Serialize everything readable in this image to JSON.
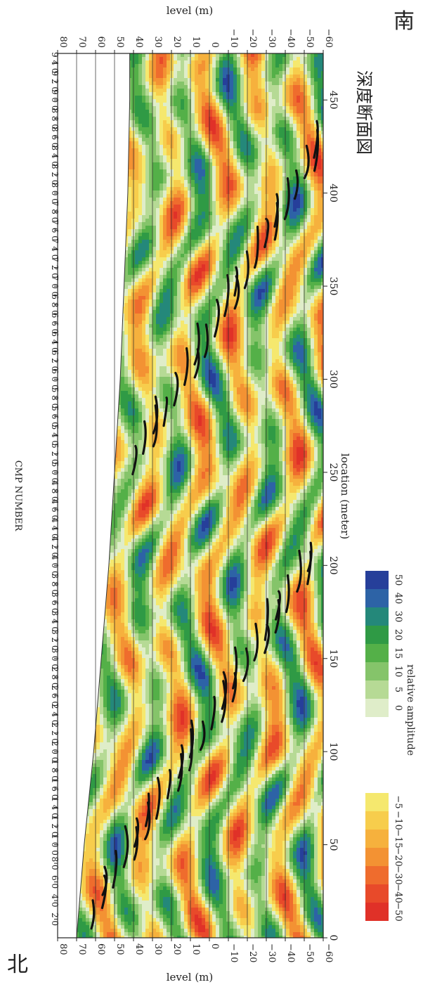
{
  "labels": {
    "north": "北",
    "south": "南",
    "title_jp": "深度断面図",
    "cmp_title": "CMP NUMBER",
    "level_label": "level (m)",
    "location_label": "location (meter)",
    "colorbar_label": "relative amplitude"
  },
  "chart_data": {
    "type": "heatmap",
    "title": "深度断面図",
    "xlabel": "location (meter)",
    "ylabel": "level (m)",
    "secondary_xlabel": "CMP NUMBER",
    "xlim": [
      0,
      475
    ],
    "ylim": [
      -60,
      80
    ],
    "grid": true,
    "x_ticks": [
      0,
      50,
      100,
      150,
      200,
      250,
      300,
      350,
      400,
      450
    ],
    "y_ticks": [
      80,
      70,
      60,
      50,
      40,
      30,
      20,
      10,
      0,
      -10,
      -20,
      -30,
      -40,
      -50,
      -60
    ],
    "cmp_ticks": [
      "2 0",
      "4 0",
      "6 0",
      "8 0",
      "1 0 0",
      "1 2 0",
      "1 4 0",
      "1 6 0",
      "1 8 0",
      "2 0 0",
      "2 2 0",
      "2 4 0",
      "2 6 0",
      "2 8 0",
      "3 0 0",
      "3 2 0",
      "3 4 0",
      "3 6 0",
      "3 8 0",
      "4 0 0",
      "4 2 0",
      "4 4 0",
      "4 6 0",
      "4 8 0",
      "5 0 0",
      "5 2 0",
      "5 4 0",
      "5 6 0",
      "5 8 0",
      "6 0 0",
      "6 2 0",
      "6 4 0",
      "6 6 0",
      "6 8 0",
      "7 0 0",
      "7 2 0",
      "7 4 0",
      "7 6 0",
      "7 8 0",
      "8 0 0",
      "8 2 0",
      "8 4 0",
      "8 6 0",
      "8 8 0",
      "9 0 0",
      "9 2 0",
      "9 4 0"
    ],
    "surface_profile": {
      "x": [
        0,
        50,
        100,
        150,
        200,
        250,
        300,
        350,
        400,
        450,
        475
      ],
      "level": [
        70,
        66,
        61,
        57,
        53,
        50,
        47,
        45,
        43,
        42,
        42
      ]
    },
    "colorbar": {
      "label": "relative amplitude",
      "bins": [
        {
          "label": "-50",
          "color": "#e03128"
        },
        {
          "label": "-40",
          "color": "#e84a2a"
        },
        {
          "label": "-30",
          "color": "#ef6c2d"
        },
        {
          "label": "-20",
          "color": "#f39233"
        },
        {
          "label": "-15",
          "color": "#f6b13d"
        },
        {
          "label": "-10",
          "color": "#f7cd4c"
        },
        {
          "label": "-5",
          "color": "#f5e86e"
        },
        {
          "label": "0",
          "color": "#dfedc9"
        },
        {
          "label": "5",
          "color": "#b6da95"
        },
        {
          "label": "10",
          "color": "#85c46a"
        },
        {
          "label": "15",
          "color": "#54b048"
        },
        {
          "label": "20",
          "color": "#2f9a45"
        },
        {
          "label": "30",
          "color": "#24887a"
        },
        {
          "label": "40",
          "color": "#2d63a6"
        },
        {
          "label": "50",
          "color": "#263f9a"
        }
      ]
    }
  }
}
